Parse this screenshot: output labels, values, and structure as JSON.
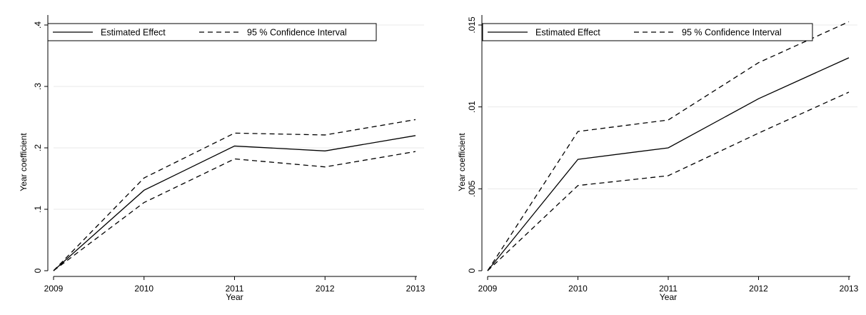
{
  "chart_data": [
    {
      "type": "line",
      "xlabel": "Year",
      "ylabel": "Year coefficient",
      "x": [
        2009,
        2010,
        2011,
        2012,
        2013
      ],
      "xlim": [
        2009,
        2013
      ],
      "ylim": [
        0,
        0.4
      ],
      "y_ticks": [
        0,
        0.1,
        0.2,
        0.3,
        0.4
      ],
      "y_tick_labels": [
        "0",
        ".1",
        ".2",
        ".3",
        ".4"
      ],
      "grid": true,
      "legend_position": "top",
      "series": [
        {
          "name": "Estimated Effect",
          "style": "solid",
          "values": [
            0,
            0.131,
            0.203,
            0.195,
            0.22
          ]
        },
        {
          "name": "95 % Confidence Interval",
          "style": "dashed",
          "values": [
            0,
            0.151,
            0.224,
            0.221,
            0.246
          ]
        },
        {
          "name": "",
          "style": "dashed",
          "values": [
            0,
            0.111,
            0.182,
            0.169,
            0.194
          ]
        }
      ]
    },
    {
      "type": "line",
      "xlabel": "Year",
      "ylabel": "Year coefficient",
      "x": [
        2009,
        2010,
        2011,
        2012,
        2013
      ],
      "xlim": [
        2009,
        2013
      ],
      "ylim": [
        0,
        0.015
      ],
      "y_ticks": [
        0,
        0.005,
        0.01,
        0.015
      ],
      "y_tick_labels": [
        "0",
        ".005",
        ".01",
        ".015"
      ],
      "grid": true,
      "legend_position": "top",
      "series": [
        {
          "name": "Estimated Effect",
          "style": "solid",
          "values": [
            0,
            0.0068,
            0.0075,
            0.0105,
            0.013
          ]
        },
        {
          "name": "95 % Confidence Interval",
          "style": "dashed",
          "values": [
            0,
            0.0085,
            0.0092,
            0.0127,
            0.0152
          ]
        },
        {
          "name": "",
          "style": "dashed",
          "values": [
            0,
            0.0052,
            0.0058,
            0.0084,
            0.0109
          ]
        }
      ]
    }
  ],
  "colors": {
    "line": "#000000",
    "grid": "#eaeaea",
    "background": "#ffffff"
  }
}
